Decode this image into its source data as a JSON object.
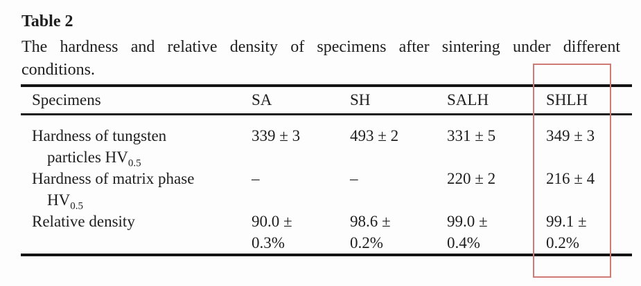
{
  "page": {
    "title": "Table 2",
    "caption_line1": "The hardness and relative density of specimens after sintering under different",
    "caption_line2": "conditions."
  },
  "table": {
    "headers": [
      "Specimens",
      "SA",
      "SH",
      "SALH",
      "SHLH"
    ],
    "rows": [
      {
        "label_line1": "Hardness of tungsten",
        "label_line2": "particles HV",
        "label_subscript": "0.5",
        "values": [
          "339 ± 3",
          "493 ± 2",
          "331 ± 5",
          "349 ± 3"
        ]
      },
      {
        "label_line1": "Hardness of matrix phase",
        "label_line2": "HV",
        "label_subscript": "0.5",
        "values": [
          "–",
          "–",
          "220 ± 2",
          "216 ± 4"
        ]
      },
      {
        "label_line1": "Relative density",
        "values": [
          "90.0 ±\n0.3%",
          "98.6 ±\n0.2%",
          "99.0 ±\n0.4%",
          "99.1 ±\n0.2%"
        ]
      }
    ],
    "highlighted_column": "SHLH"
  },
  "colors": {
    "background": "#fdfdfd",
    "text": "#1e1e1e",
    "rule": "#141414",
    "highlight_box": "#cf7a74"
  }
}
